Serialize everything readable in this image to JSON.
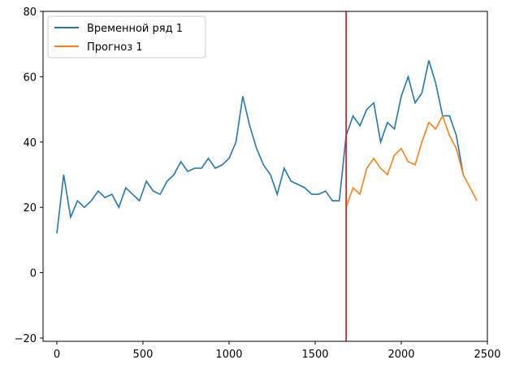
{
  "chart_data": {
    "type": "line",
    "xlim": [
      -80,
      2500
    ],
    "ylim": [
      -21,
      80
    ],
    "x_ticks": [
      0,
      500,
      1000,
      1500,
      2000,
      2500
    ],
    "y_ticks": [
      -20,
      0,
      20,
      40,
      60,
      80
    ],
    "vline": {
      "x": 1680,
      "color": "#d62728"
    },
    "legend": {
      "position": "top-left",
      "entries": [
        "Временной ряд 1",
        "Прогноз 1"
      ]
    },
    "series": [
      {
        "name": "Временной ряд 1",
        "color": "#1f77b4",
        "x_start": 0,
        "x_step": 40,
        "values": [
          12,
          30,
          17,
          22,
          20,
          22,
          25,
          23,
          24,
          20,
          26,
          24,
          22,
          28,
          25,
          24,
          28,
          30,
          34,
          31,
          32,
          32,
          35,
          32,
          33,
          35,
          40,
          54,
          45,
          38,
          33,
          30,
          24,
          32,
          28,
          27,
          26,
          24,
          24,
          25,
          22,
          22,
          42,
          48,
          45,
          50,
          52,
          40,
          46,
          44,
          54,
          60,
          52,
          55,
          65,
          58,
          48,
          48,
          42,
          30
        ]
      },
      {
        "name": "Прогноз 1",
        "color": "#ff7f0e",
        "x_start": 1680,
        "x_step": 40,
        "values": [
          20,
          26,
          24,
          32,
          35,
          32,
          30,
          36,
          38,
          34,
          33,
          40,
          46,
          44,
          48,
          42,
          38,
          30,
          26,
          22
        ]
      }
    ]
  }
}
